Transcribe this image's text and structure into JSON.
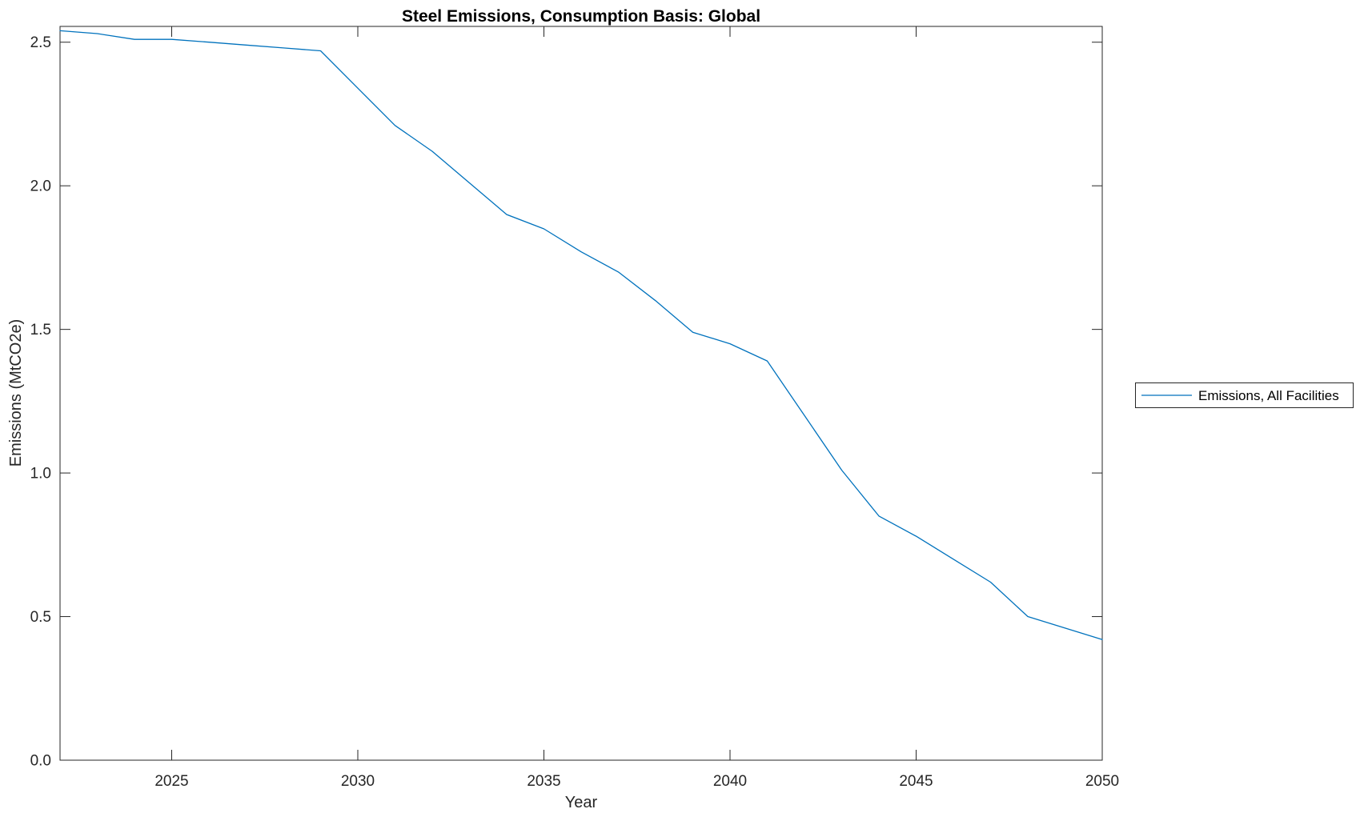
{
  "figure": {
    "title": "Steel Emissions, Consumption Basis: Global",
    "xlabel": "Year",
    "ylabel": "Emissions (MtCO2e)",
    "legend_label": "Emissions, All Facilities"
  },
  "colors": {
    "line": "#0072BD",
    "axis": "#262626",
    "title_text": "#000000",
    "background": "#ffffff"
  },
  "chart_data": {
    "type": "line",
    "title": "Steel Emissions, Consumption Basis: Global",
    "xlabel": "Year",
    "ylabel": "Emissions (MtCO2e)",
    "xlim": [
      2022,
      2050
    ],
    "ylim": [
      0,
      2.555
    ],
    "x_ticks": [
      2025,
      2030,
      2035,
      2040,
      2045,
      2050
    ],
    "y_ticks": [
      0,
      0.5,
      1.0,
      1.5,
      2.0,
      2.5
    ],
    "y_tick_labels": [
      "0.0",
      "0.5",
      "1.0",
      "1.5",
      "2.0",
      "2.5"
    ],
    "grid": false,
    "box": true,
    "tick_direction": "in",
    "legend_position": "outside-right",
    "series": [
      {
        "name": "Emissions, All Facilities",
        "color": "#0072BD",
        "x": [
          2022,
          2023,
          2024,
          2025,
          2026,
          2027,
          2028,
          2029,
          2030,
          2031,
          2032,
          2033,
          2034,
          2035,
          2036,
          2037,
          2038,
          2039,
          2040,
          2041,
          2042,
          2043,
          2044,
          2045,
          2046,
          2047,
          2048,
          2049,
          2050
        ],
        "values": [
          2.54,
          2.53,
          2.51,
          2.51,
          2.5,
          2.49,
          2.48,
          2.47,
          2.34,
          2.21,
          2.12,
          2.01,
          1.9,
          1.85,
          1.77,
          1.7,
          1.6,
          1.49,
          1.45,
          1.39,
          1.2,
          1.01,
          0.85,
          0.78,
          0.7,
          0.62,
          0.5,
          0.46,
          0.42
        ]
      }
    ]
  }
}
